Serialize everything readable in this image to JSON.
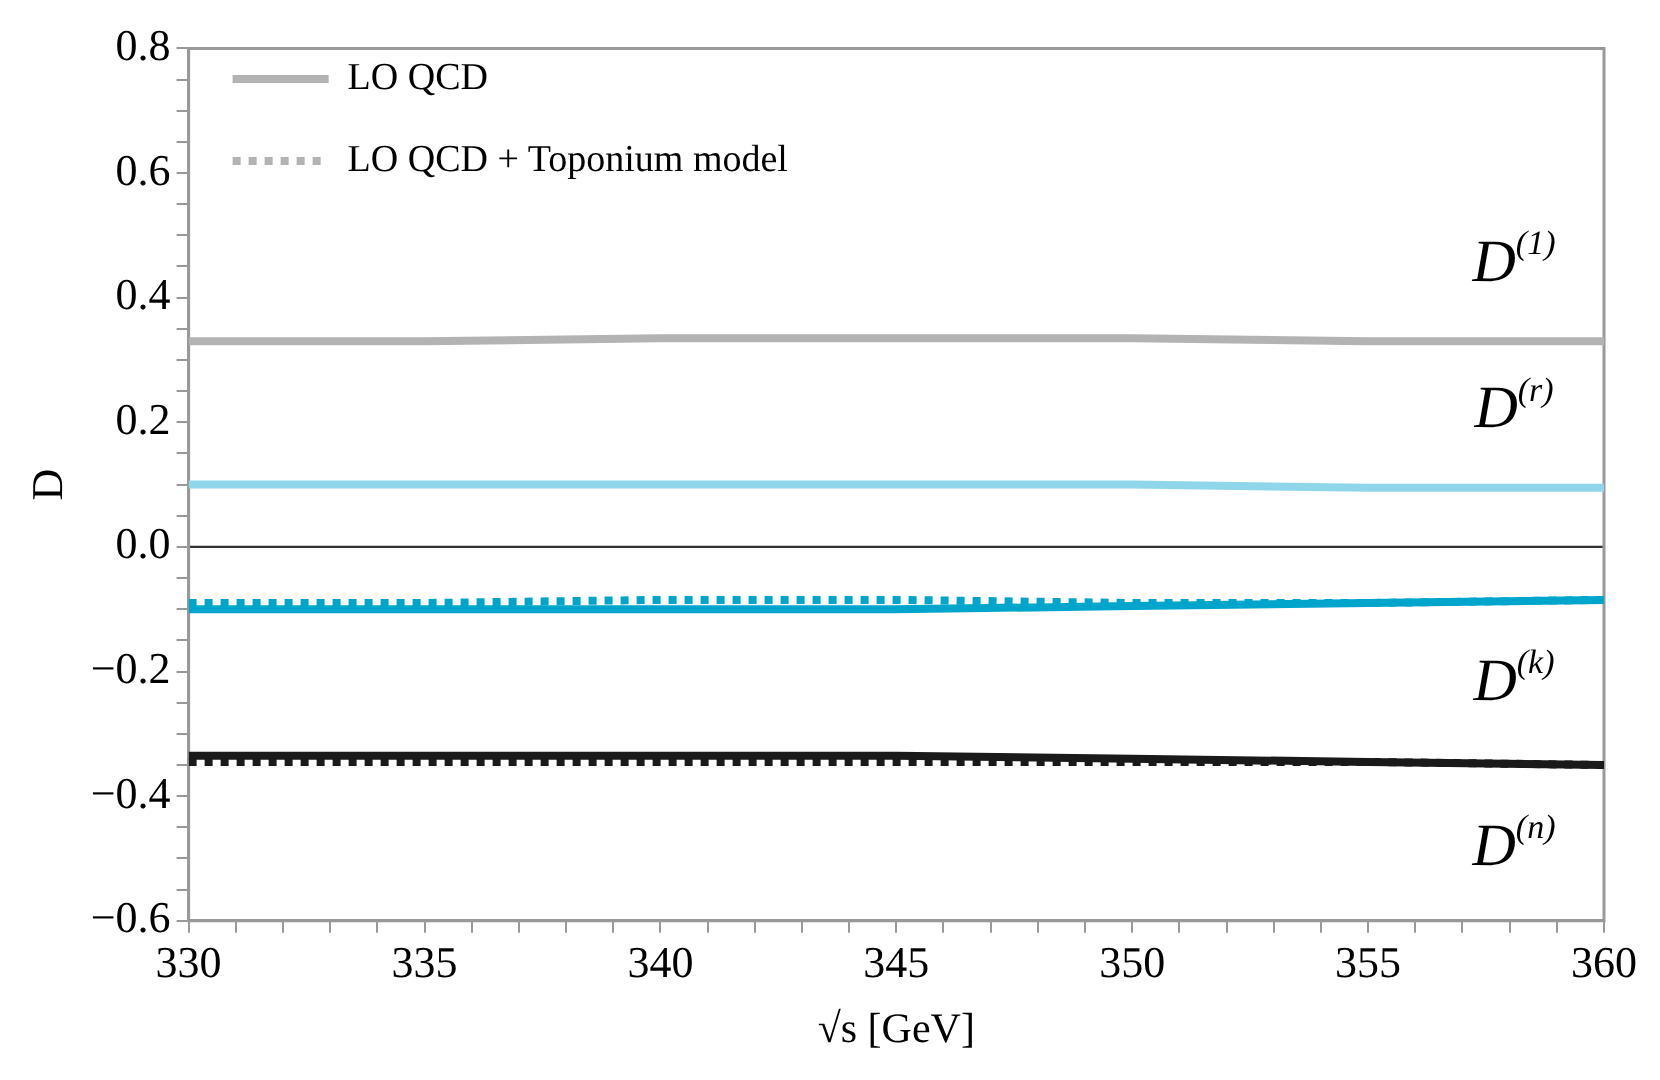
{
  "chart_data": {
    "type": "line",
    "xlabel": "√s [GeV]",
    "ylabel": "D",
    "x": [
      330,
      335,
      340,
      345,
      350,
      355,
      360
    ],
    "xlim": [
      330,
      360
    ],
    "xticks": [
      330,
      {
        "value": 331,
        "label": null
      },
      {
        "value": 332,
        "label": null
      },
      {
        "value": 333,
        "label": null
      },
      {
        "value": 334,
        "label": null
      },
      335,
      {
        "value": 336,
        "label": null
      },
      {
        "value": 337,
        "label": null
      },
      {
        "value": 338,
        "label": null
      },
      {
        "value": 339,
        "label": null
      },
      340,
      {
        "value": 341,
        "label": null
      },
      {
        "value": 342,
        "label": null
      },
      {
        "value": 343,
        "label": null
      },
      {
        "value": 344,
        "label": null
      },
      345,
      {
        "value": 346,
        "label": null
      },
      {
        "value": 347,
        "label": null
      },
      {
        "value": 348,
        "label": null
      },
      {
        "value": 349,
        "label": null
      },
      350,
      {
        "value": 351,
        "label": null
      },
      {
        "value": 352,
        "label": null
      },
      {
        "value": 353,
        "label": null
      },
      {
        "value": 354,
        "label": null
      },
      355,
      {
        "value": 356,
        "label": null
      },
      {
        "value": 357,
        "label": null
      },
      {
        "value": 358,
        "label": null
      },
      {
        "value": 359,
        "label": null
      },
      360
    ],
    "ylim": [
      -0.6,
      0.8
    ],
    "yticks": [
      {
        "value": -0.6,
        "label": "−0.6"
      },
      {
        "value": -0.55,
        "label": null
      },
      {
        "value": -0.5,
        "label": null
      },
      {
        "value": -0.45,
        "label": null
      },
      {
        "value": -0.4,
        "label": "−0.4"
      },
      {
        "value": -0.35,
        "label": null
      },
      {
        "value": -0.3,
        "label": null
      },
      {
        "value": -0.25,
        "label": null
      },
      {
        "value": -0.2,
        "label": "−0.2"
      },
      {
        "value": -0.15,
        "label": null
      },
      {
        "value": -0.1,
        "label": null
      },
      {
        "value": -0.05,
        "label": null
      },
      {
        "value": 0,
        "label": "0.0"
      },
      {
        "value": 0.05,
        "label": null
      },
      {
        "value": 0.1,
        "label": null
      },
      {
        "value": 0.15,
        "label": null
      },
      {
        "value": 0.2,
        "label": "0.2"
      },
      {
        "value": 0.25,
        "label": null
      },
      {
        "value": 0.3,
        "label": null
      },
      {
        "value": 0.35,
        "label": null
      },
      {
        "value": 0.4,
        "label": "0.4"
      },
      {
        "value": 0.45,
        "label": null
      },
      {
        "value": 0.5,
        "label": null
      },
      {
        "value": 0.55,
        "label": null
      },
      {
        "value": 0.6,
        "label": "0.6"
      },
      {
        "value": 0.65,
        "label": null
      },
      {
        "value": 0.7,
        "label": null
      },
      {
        "value": 0.75,
        "label": null
      },
      {
        "value": 0.8,
        "label": "0.8"
      }
    ],
    "grid": false,
    "legend": "top left",
    "marker": "none",
    "ref_lines": [
      {
        "axis": "y",
        "value": 0,
        "color": "#333333"
      }
    ],
    "series": [
      {
        "name": "LO QCD",
        "color": "#b3b3b3",
        "line_style": "solid",
        "values": [
          0.33,
          0.33,
          0.335,
          0.335,
          0.335,
          0.33,
          0.33
        ]
      },
      {
        "name": "LO QCD + Toponium model",
        "color": "#b3b3b3",
        "line_style": "dotted",
        "values": [
          null,
          null,
          null,
          null,
          null,
          null,
          null
        ]
      },
      {
        "color": "#8fd6ea",
        "line_style": "solid",
        "values": [
          0.1,
          0.1,
          0.1,
          0.1,
          0.1,
          0.095,
          0.095
        ]
      },
      {
        "color": "#8fd6ea",
        "line_style": "dotted",
        "values": [
          null,
          null,
          null,
          null,
          null,
          null,
          null
        ]
      },
      {
        "color": "#00a5cc",
        "line_style": "solid",
        "values": [
          -0.1,
          -0.1,
          -0.1,
          -0.1,
          -0.095,
          -0.09,
          -0.085
        ]
      },
      {
        "color": "#00a5cc",
        "line_style": "dotted",
        "values": [
          -0.09,
          -0.09,
          -0.085,
          -0.085,
          -0.09,
          -0.09,
          -0.085
        ]
      },
      {
        "color": "#1a1a1a",
        "line_style": "solid",
        "values": [
          -0.335,
          -0.335,
          -0.335,
          -0.335,
          -0.34,
          -0.345,
          -0.35
        ]
      },
      {
        "color": "#1a1a1a",
        "line_style": "dotted",
        "values": [
          -0.345,
          -0.345,
          -0.345,
          -0.345,
          -0.345,
          -0.345,
          -0.35
        ]
      }
    ],
    "annotations": [
      "D$^{(1)}$",
      "D$^{(r)}$",
      "D$^{(k)}$",
      "D$^{(n)}$"
    ]
  }
}
